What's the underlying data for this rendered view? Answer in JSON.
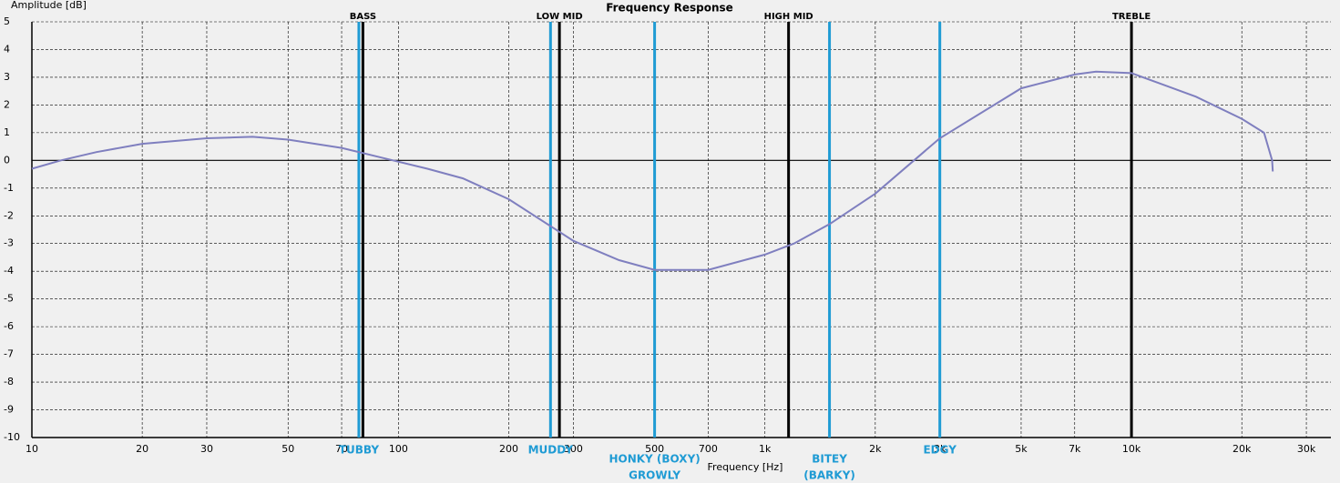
{
  "chart_data": {
    "type": "line",
    "title": "Frequency Response",
    "y_label": "Amplitude [dB]",
    "x_label": "Frequency [Hz]",
    "x_log": true,
    "grid": true,
    "xlim": [
      10,
      35000
    ],
    "ylim": [
      -10,
      5
    ],
    "xticks": [
      10,
      20,
      30,
      50,
      70,
      100,
      200,
      300,
      500,
      700,
      {
        "value": 1000,
        "label": "1k"
      },
      {
        "value": 2000,
        "label": "2k"
      },
      {
        "value": 3000,
        "label": "3k"
      },
      {
        "value": 5000,
        "label": "5k"
      },
      {
        "value": 7000,
        "label": "7k"
      },
      {
        "value": 10000,
        "label": "10k"
      },
      {
        "value": 20000,
        "label": "20k"
      },
      {
        "value": 30000,
        "label": "30k"
      }
    ],
    "yticks": [
      5,
      4,
      3,
      2,
      1,
      0,
      -1,
      -2,
      -3,
      -4,
      -5,
      -6,
      -7,
      -8,
      -9,
      -10
    ],
    "series": [
      {
        "color": "#7f7fbf",
        "x": [
          10,
          12,
          15,
          20,
          30,
          40,
          50,
          70,
          90,
          120,
          150,
          200,
          300,
          400,
          500,
          700,
          1000,
          1200,
          1500,
          2000,
          3000,
          5000,
          7000,
          8000,
          10000,
          15000,
          20000,
          23000,
          24200,
          24300
        ],
        "values": [
          -0.3,
          0,
          0.3,
          0.6,
          0.8,
          0.85,
          0.75,
          0.45,
          0.1,
          -0.3,
          -0.65,
          -1.4,
          -2.9,
          -3.6,
          -3.95,
          -3.95,
          -3.4,
          -3.0,
          -2.3,
          -1.2,
          0.8,
          2.6,
          3.1,
          3.2,
          3.15,
          2.3,
          1.5,
          1.0,
          0,
          -0.4
        ]
      }
    ],
    "ranges": [
      {
        "label": "BASS",
        "x": 80,
        "color": "#000000"
      },
      {
        "label": "LOW MID",
        "x": 275,
        "color": "#000000"
      },
      {
        "label": "HIGH MID",
        "x": 1160,
        "color": "#000000"
      },
      {
        "label": "TREBLE",
        "x": 10000,
        "color": "#000000"
      }
    ],
    "descriptors": [
      {
        "lines": [
          "TUBBY"
        ],
        "x": 78,
        "color": "#1f9bd4"
      },
      {
        "lines": [
          "MUDDY"
        ],
        "x": 260,
        "color": "#1f9bd4"
      },
      {
        "lines": [
          "HONKY (BOXY)",
          "GROWLY"
        ],
        "x": 500,
        "color": "#1f9bd4"
      },
      {
        "lines": [
          "BITEY",
          "(BARKY)"
        ],
        "x": 1500,
        "color": "#1f9bd4"
      },
      {
        "lines": [
          "EDGY"
        ],
        "x": 3000,
        "color": "#1f9bd4"
      }
    ]
  }
}
